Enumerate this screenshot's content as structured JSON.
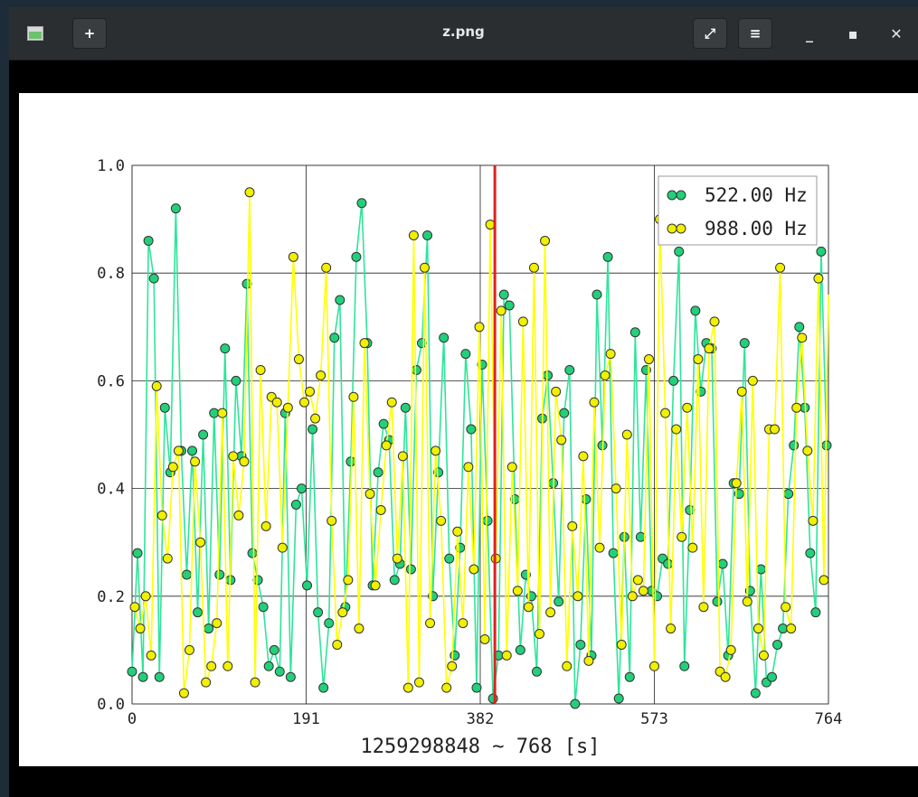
{
  "window": {
    "title": "z.png",
    "icons": {
      "app": "image-icon",
      "new": "add-icon",
      "fullscreen": "fullscreen-icon",
      "menu": "hamburger-menu-icon",
      "minimize": "minimize-icon",
      "maximize": "maximize-icon",
      "close": "close-icon"
    },
    "button_glyphs": {
      "new": "+",
      "fullscreen": "⤢",
      "menu": "≡",
      "minimize": "_",
      "maximize": "▪",
      "close": "✕"
    }
  },
  "chart_data": {
    "type": "line",
    "markers": "circle",
    "xlabel": "1259298848 ~ 768 [s]",
    "ylabel": "",
    "xlim": [
      0,
      764
    ],
    "ylim": [
      0.0,
      1.0
    ],
    "xticks": [
      0,
      191,
      382,
      573,
      764
    ],
    "xtick_labels": [
      "0",
      "191",
      "382",
      "573",
      "764"
    ],
    "yticks": [
      0.0,
      0.2,
      0.4,
      0.6,
      0.8,
      1.0
    ],
    "ytick_labels": [
      "0.0",
      "0.2",
      "0.4",
      "0.6",
      "0.8",
      "1.0"
    ],
    "grid": true,
    "legend_position": "top-right",
    "marker_line": {
      "x": 398,
      "color": "#e02020"
    },
    "series": [
      {
        "name": "522.00 Hz",
        "color": "#2ee59a",
        "marker_color": "#22d07a",
        "x": [
          0,
          6,
          12,
          18,
          24,
          30,
          36,
          42,
          48,
          54,
          60,
          66,
          72,
          78,
          84,
          90,
          96,
          102,
          108,
          114,
          120,
          126,
          132,
          138,
          144,
          150,
          156,
          162,
          168,
          174,
          180,
          186,
          192,
          198,
          204,
          210,
          216,
          222,
          228,
          234,
          240,
          246,
          252,
          258,
          264,
          270,
          276,
          282,
          288,
          294,
          300,
          306,
          312,
          318,
          324,
          330,
          336,
          342,
          348,
          354,
          360,
          366,
          372,
          378,
          384,
          390,
          396,
          402,
          408,
          414,
          420,
          426,
          432,
          438,
          444,
          450,
          456,
          462,
          468,
          474,
          480,
          486,
          492,
          498,
          504,
          510,
          516,
          522,
          528,
          534,
          540,
          546,
          552,
          558,
          564,
          570,
          576,
          582,
          588,
          594,
          600,
          606,
          612,
          618,
          624,
          630,
          636,
          642,
          648,
          654,
          660,
          666,
          672,
          678,
          684,
          690,
          696,
          702,
          708,
          714,
          720,
          726,
          732,
          738,
          744,
          750,
          756,
          762
        ],
        "values": [
          0.06,
          0.28,
          0.05,
          0.86,
          0.79,
          0.05,
          0.55,
          0.43,
          0.92,
          0.47,
          0.24,
          0.47,
          0.17,
          0.5,
          0.14,
          0.54,
          0.24,
          0.66,
          0.23,
          0.6,
          0.46,
          0.78,
          0.28,
          0.23,
          0.18,
          0.07,
          0.1,
          0.06,
          0.54,
          0.05,
          0.37,
          0.4,
          0.22,
          0.51,
          0.17,
          0.03,
          0.15,
          0.68,
          0.75,
          0.18,
          0.45,
          0.83,
          0.93,
          0.67,
          0.22,
          0.43,
          0.52,
          0.49,
          0.23,
          0.26,
          0.55,
          0.25,
          0.62,
          0.67,
          0.87,
          0.2,
          0.43,
          0.68,
          0.27,
          0.09,
          0.29,
          0.65,
          0.51,
          0.03,
          0.63,
          0.34,
          0.01,
          0.09,
          0.76,
          0.74,
          0.38,
          0.1,
          0.24,
          0.2,
          0.06,
          0.53,
          0.61,
          0.41,
          0.19,
          0.54,
          0.62,
          0.0,
          0.11,
          0.38,
          0.09,
          0.76,
          0.48,
          0.83,
          0.28,
          0.01,
          0.31,
          0.05,
          0.69,
          0.31,
          0.62,
          0.21,
          0.2,
          0.27,
          0.26,
          0.6,
          0.84,
          0.07,
          0.36,
          0.73,
          0.58,
          0.67,
          0.66,
          0.19,
          0.26,
          0.09,
          0.41,
          0.39,
          0.67,
          0.21,
          0.02,
          0.25,
          0.04,
          0.05,
          0.11,
          0.14,
          0.39,
          0.48,
          0.7,
          0.55,
          0.28,
          0.17,
          0.84,
          0.48
        ]
      },
      {
        "name": "988.00 Hz",
        "color": "#ffff00",
        "marker_color": "#f0f000",
        "x": [
          3,
          9,
          15,
          21,
          27,
          33,
          39,
          45,
          51,
          57,
          63,
          69,
          75,
          81,
          87,
          93,
          99,
          105,
          111,
          117,
          123,
          129,
          135,
          141,
          147,
          153,
          159,
          165,
          171,
          177,
          183,
          189,
          195,
          201,
          207,
          213,
          219,
          225,
          231,
          237,
          243,
          249,
          255,
          261,
          267,
          273,
          279,
          285,
          291,
          297,
          303,
          309,
          315,
          321,
          327,
          333,
          339,
          345,
          351,
          357,
          363,
          369,
          375,
          381,
          387,
          393,
          399,
          405,
          411,
          417,
          423,
          429,
          435,
          441,
          447,
          453,
          459,
          465,
          471,
          477,
          483,
          489,
          495,
          501,
          507,
          513,
          519,
          525,
          531,
          537,
          543,
          549,
          555,
          561,
          567,
          573,
          579,
          585,
          591,
          597,
          603,
          609,
          615,
          621,
          627,
          633,
          639,
          645,
          651,
          657,
          663,
          669,
          675,
          681,
          687,
          693,
          699,
          705,
          711,
          717,
          723,
          729,
          735,
          741,
          747,
          753,
          759,
          765
        ],
        "values": [
          0.18,
          0.14,
          0.2,
          0.09,
          0.59,
          0.35,
          0.27,
          0.44,
          0.47,
          0.02,
          0.1,
          0.45,
          0.3,
          0.04,
          0.07,
          0.15,
          0.54,
          0.07,
          0.46,
          0.35,
          0.45,
          0.95,
          0.04,
          0.62,
          0.33,
          0.57,
          0.56,
          0.29,
          0.55,
          0.83,
          0.64,
          0.56,
          0.58,
          0.53,
          0.61,
          0.81,
          0.34,
          0.11,
          0.17,
          0.23,
          0.57,
          0.14,
          0.67,
          0.39,
          0.22,
          0.36,
          0.48,
          0.56,
          0.27,
          0.46,
          0.03,
          0.87,
          0.04,
          0.81,
          0.15,
          0.47,
          0.34,
          0.03,
          0.07,
          0.32,
          0.15,
          0.44,
          0.25,
          0.7,
          0.12,
          0.89,
          0.27,
          0.73,
          0.09,
          0.44,
          0.21,
          0.71,
          0.18,
          0.81,
          0.13,
          0.86,
          0.17,
          0.58,
          0.49,
          0.07,
          0.33,
          0.2,
          0.46,
          0.08,
          0.56,
          0.29,
          0.61,
          0.65,
          0.4,
          0.11,
          0.5,
          0.2,
          0.23,
          0.21,
          0.64,
          0.07,
          0.9,
          0.54,
          0.14,
          0.51,
          0.31,
          0.55,
          0.29,
          0.64,
          0.18,
          0.66,
          0.71,
          0.06,
          0.05,
          0.1,
          0.41,
          0.58,
          0.19,
          0.6,
          0.14,
          0.09,
          0.51,
          0.51,
          0.81,
          0.18,
          0.14,
          0.55,
          0.68,
          0.47,
          0.34,
          0.79,
          0.23,
          0.76
        ]
      }
    ]
  }
}
